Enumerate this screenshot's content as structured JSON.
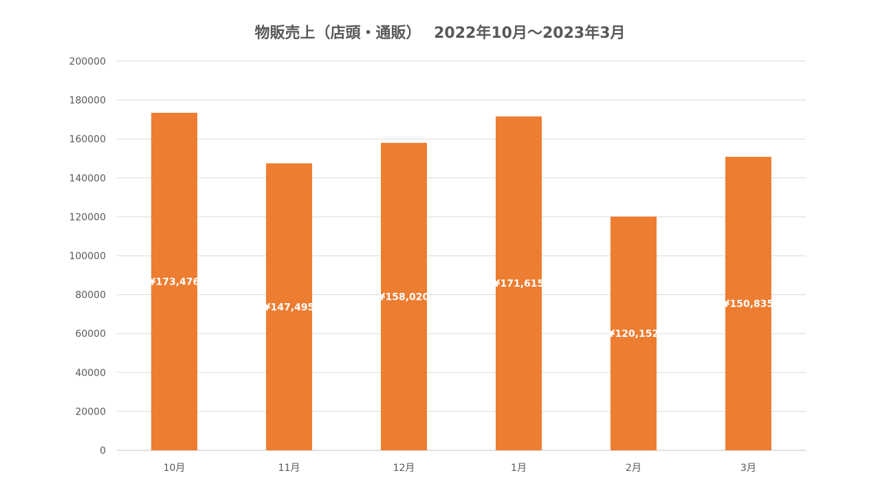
{
  "chart_data": {
    "type": "bar",
    "title": "物販売上（店頭・通販）　 2022年10月～2023年3月",
    "categories": [
      "10月",
      "11月",
      "12月",
      "1月",
      "2月",
      "3月"
    ],
    "series": [
      {
        "values": [
          173476,
          147495,
          158020,
          171615,
          120152,
          150835
        ],
        "labels": [
          "¥173,476",
          "¥147,495",
          "¥158,020",
          "¥171,615",
          "¥120,152",
          "¥150,835"
        ],
        "color": "#ED7D31"
      }
    ],
    "yticks": [
      "0",
      "20000",
      "40000",
      "60000",
      "80000",
      "100000",
      "120000",
      "140000",
      "160000",
      "180000",
      "200000"
    ],
    "ylim": [
      0,
      200000
    ],
    "grid": true,
    "legend": "none",
    "colors": {
      "gridline": "#D9D9D9",
      "text": "#595959",
      "bar": "#ED7D31",
      "data_label": "#FFFFFF"
    }
  }
}
